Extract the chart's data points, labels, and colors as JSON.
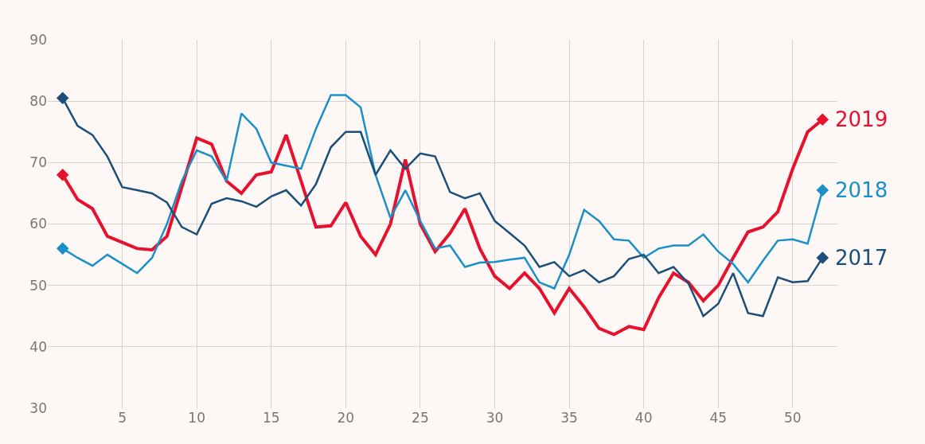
{
  "chart_data": {
    "type": "line",
    "x": [
      1,
      2,
      3,
      4,
      5,
      6,
      7,
      8,
      9,
      10,
      11,
      12,
      13,
      14,
      15,
      16,
      17,
      18,
      19,
      20,
      21,
      22,
      23,
      24,
      25,
      26,
      27,
      28,
      29,
      30,
      31,
      32,
      33,
      34,
      35,
      36,
      37,
      38,
      39,
      40,
      41,
      42,
      43,
      44,
      45,
      46,
      47,
      48,
      49,
      50,
      51,
      52
    ],
    "series": [
      {
        "name": "2019",
        "color": "#e8112d",
        "values": [
          68,
          64,
          62.5,
          58,
          57,
          56,
          55.8,
          58,
          66,
          74,
          73,
          67,
          65,
          68,
          68.5,
          74.5,
          67,
          59.5,
          59.7,
          63.5,
          58,
          55,
          60,
          70.5,
          60,
          55.5,
          58.5,
          62.5,
          56,
          51.5,
          49.5,
          52,
          49.5,
          45.5,
          49.5,
          46.5,
          43,
          42,
          43.3,
          42.8,
          48,
          52,
          50.5,
          47.5,
          50,
          54.5,
          58.7,
          59.5,
          62,
          69,
          75,
          77
        ]
      },
      {
        "name": "2018",
        "color": "#1a90c8",
        "values": [
          56,
          54.5,
          53.2,
          55,
          53.5,
          52,
          54.5,
          60,
          67,
          72,
          71,
          67,
          78,
          75.5,
          70,
          69.5,
          69,
          75.5,
          81,
          81,
          79,
          68,
          61,
          65.5,
          60.5,
          56,
          56.5,
          53,
          53.7,
          53.8,
          54.2,
          54.5,
          50.5,
          49.5,
          55,
          62.3,
          60.5,
          57.5,
          57.3,
          54.5,
          56,
          56.5,
          56.5,
          58.3,
          55.5,
          53.5,
          50.5,
          54,
          57.3,
          57.5,
          56.8,
          65.5
        ]
      },
      {
        "name": "2017",
        "color": "#1b4f7a",
        "values": [
          80.5,
          76,
          74.5,
          71,
          66,
          65.5,
          65,
          63.5,
          59.5,
          58.3,
          63.3,
          64.2,
          63.7,
          62.8,
          64.5,
          65.5,
          63,
          66.5,
          72.5,
          75,
          75,
          68,
          72,
          69,
          71.5,
          71,
          65.2,
          64.2,
          65,
          60.5,
          58.5,
          56.5,
          53,
          53.8,
          51.5,
          52.5,
          50.5,
          51.5,
          54.3,
          55,
          52,
          53,
          50.3,
          45,
          47,
          52,
          45.5,
          45,
          51.3,
          50.5,
          50.7,
          54.5
        ]
      }
    ],
    "xlim": [
      0,
      53
    ],
    "xticks": [
      5,
      10,
      15,
      20,
      25,
      30,
      35,
      40,
      45,
      50
    ],
    "ylim": [
      30,
      90
    ],
    "yticks": [
      30,
      40,
      50,
      60,
      70,
      80,
      90
    ],
    "grid": true,
    "legend": false,
    "line_style": "solid"
  }
}
